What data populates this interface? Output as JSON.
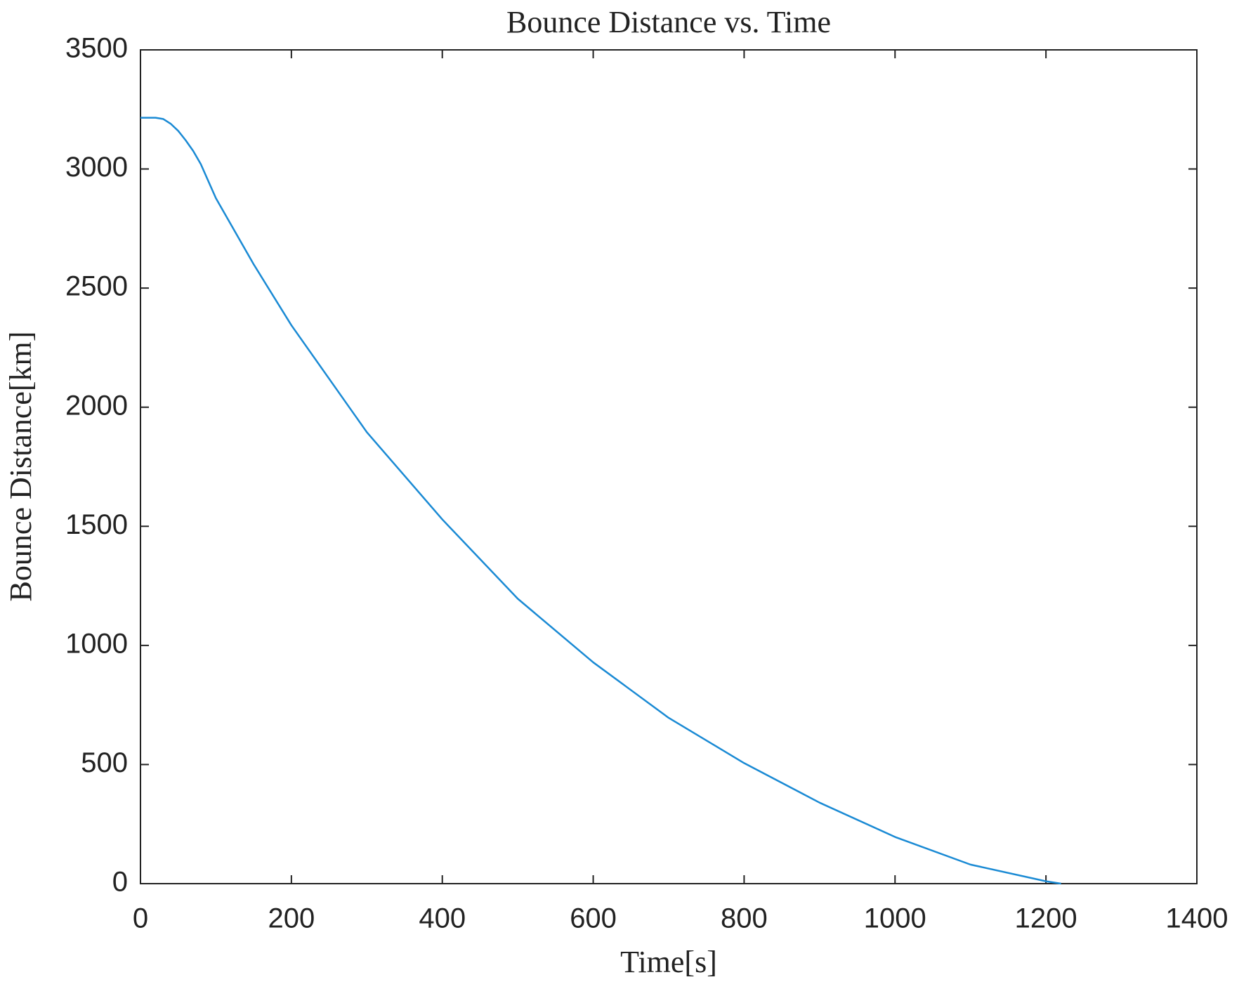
{
  "chart_data": {
    "type": "line",
    "title": "Bounce Distance vs. Time",
    "x_label": "Time[s]",
    "y_label": "Bounce Distance[km]",
    "x": [
      0,
      10,
      20,
      30,
      40,
      50,
      60,
      70,
      80,
      100,
      150,
      200,
      300,
      400,
      500,
      600,
      700,
      800,
      900,
      1000,
      1100,
      1200,
      1220
    ],
    "series": [
      {
        "name": "Bounce Distance",
        "color": "#1a8ad4",
        "values": [
          3215,
          3215,
          3215,
          3210,
          3190,
          3160,
          3120,
          3075,
          3020,
          2877,
          2600,
          2344,
          1895,
          1529,
          1196,
          929,
          696,
          506,
          340,
          196,
          80,
          10,
          0
        ]
      }
    ],
    "xlim": [
      0,
      1400
    ],
    "xticks": [
      0,
      200,
      400,
      600,
      800,
      1000,
      1200,
      1400
    ],
    "ylim": [
      0,
      3500
    ],
    "yticks": [
      0,
      500,
      1000,
      1500,
      2000,
      2500,
      3000,
      3500
    ],
    "grid": false
  }
}
